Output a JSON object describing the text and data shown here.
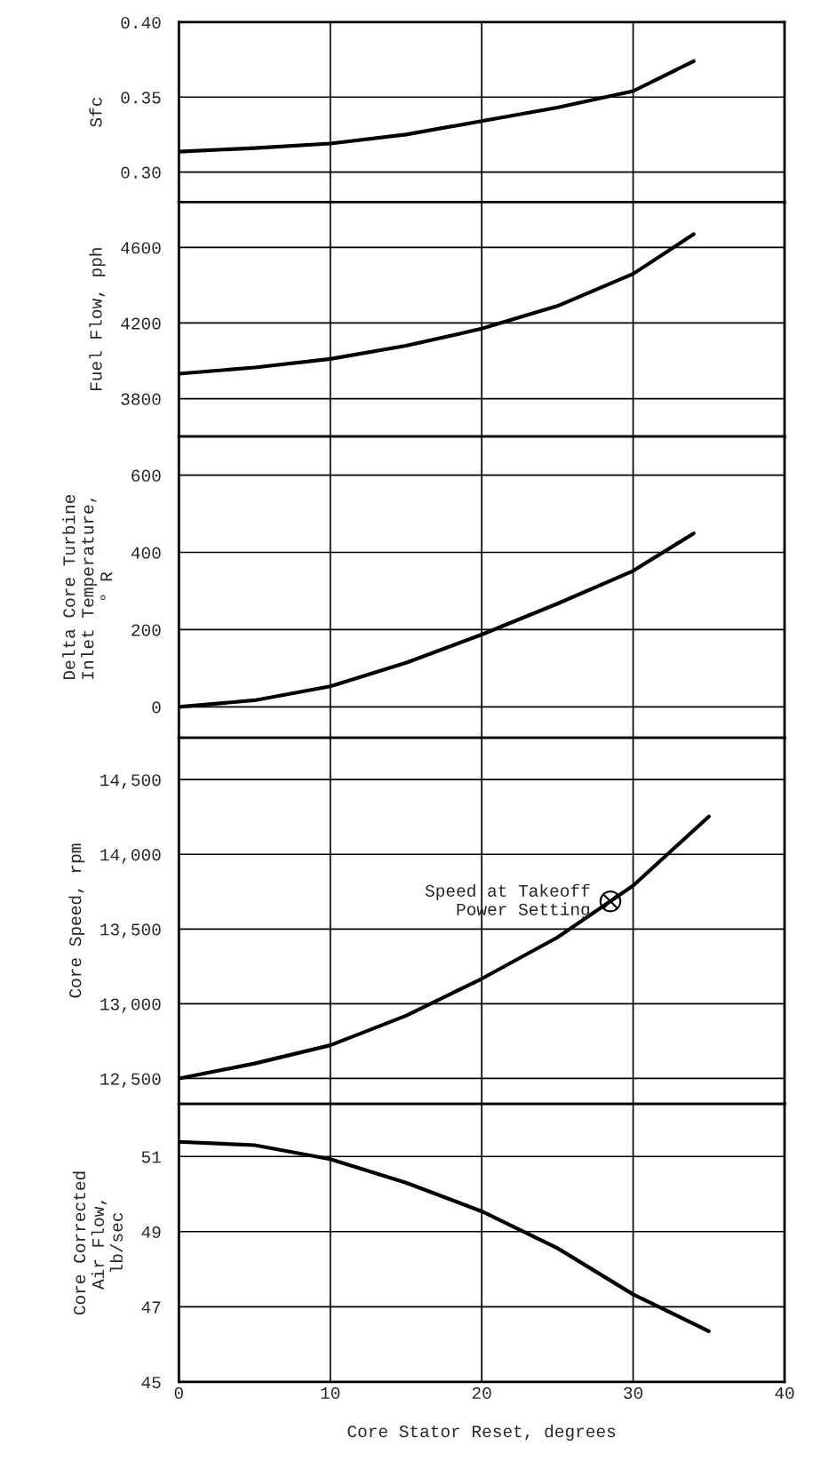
{
  "chart_data": [
    {
      "type": "line",
      "ylabel": "Sfc",
      "x": [
        0,
        5,
        10,
        15,
        20,
        25,
        30,
        34
      ],
      "series": [
        {
          "color": "#000000",
          "values": [
            0.3136,
            0.316,
            0.319,
            0.325,
            0.334,
            0.343,
            0.354,
            0.374
          ]
        }
      ],
      "xlim": [
        0,
        40
      ],
      "xticks": [
        0,
        10,
        20,
        30,
        40
      ],
      "ylim": [
        0.28,
        0.4
      ],
      "yticks": [
        {
          "value": 0.3,
          "label": "0.30"
        },
        {
          "value": 0.35,
          "label": "0.35"
        },
        {
          "value": 0.4,
          "label": "0.40"
        }
      ],
      "grid": true,
      "tick_labels": "y"
    },
    {
      "type": "line",
      "ylabel": "Fuel Flow, pph",
      "x": [
        0,
        5,
        10,
        15,
        20,
        25,
        30,
        34
      ],
      "series": [
        {
          "color": "#000000",
          "values": [
            3932,
            3965,
            4010,
            4080,
            4170,
            4290,
            4460,
            4670
          ]
        }
      ],
      "xlim": [
        0,
        40
      ],
      "xticks": [
        0,
        10,
        20,
        30,
        40
      ],
      "ylim": [
        3600,
        4840
      ],
      "yticks": [
        3800,
        4200,
        4600
      ],
      "grid": true,
      "tick_labels": "y"
    },
    {
      "type": "line",
      "ylabel": "Delta Core Turbine\nInlet Temperature,\n° R",
      "x": [
        0,
        5,
        10,
        15,
        20,
        25,
        30,
        34
      ],
      "series": [
        {
          "color": "#000000",
          "values": [
            0,
            17,
            53,
            114,
            187,
            267,
            352,
            449
          ]
        }
      ],
      "xlim": [
        0,
        40
      ],
      "xticks": [
        0,
        10,
        20,
        30,
        40
      ],
      "ylim": [
        -80,
        700
      ],
      "yticks": [
        0,
        200,
        400,
        600
      ],
      "grid": true,
      "tick_labels": "y"
    },
    {
      "type": "line",
      "ylabel": "Core Speed, rpm",
      "x": [
        0,
        5,
        10,
        15,
        20,
        25,
        30,
        35
      ],
      "series": [
        {
          "color": "#000000",
          "values": [
            12500,
            12600,
            12722,
            12920,
            13167,
            13444,
            13790,
            14253
          ]
        }
      ],
      "xlim": [
        0,
        40
      ],
      "xticks": [
        0,
        10,
        20,
        30,
        40
      ],
      "ylim": [
        12330,
        14780
      ],
      "yticks": [
        {
          "value": 12500,
          "label": "12,500"
        },
        {
          "value": 13000,
          "label": "13,000"
        },
        {
          "value": 13500,
          "label": "13,500"
        },
        {
          "value": 14000,
          "label": "14,000"
        },
        {
          "value": 14500,
          "label": "14,500"
        }
      ],
      "grid": true,
      "tick_labels": "y",
      "annotations": [
        {
          "text": "Speed at Takeoff\nPower Setting",
          "x": 28.5,
          "y": 13685
        }
      ]
    },
    {
      "type": "line",
      "ylabel": "Core Corrected\nAir Flow,\nlb/sec",
      "xlabel": "Core Stator Reset, degrees",
      "x": [
        0,
        5,
        10,
        15,
        20,
        25,
        30,
        35
      ],
      "series": [
        {
          "color": "#000000",
          "values": [
            51.39,
            51.3,
            50.93,
            50.3,
            49.54,
            48.56,
            47.33,
            46.35
          ]
        }
      ],
      "xlim": [
        0,
        40
      ],
      "xticks": [
        0,
        10,
        20,
        30,
        40
      ],
      "ylim": [
        45,
        52.4
      ],
      "yticks": [
        45,
        47,
        49,
        51
      ],
      "grid": true
    }
  ]
}
